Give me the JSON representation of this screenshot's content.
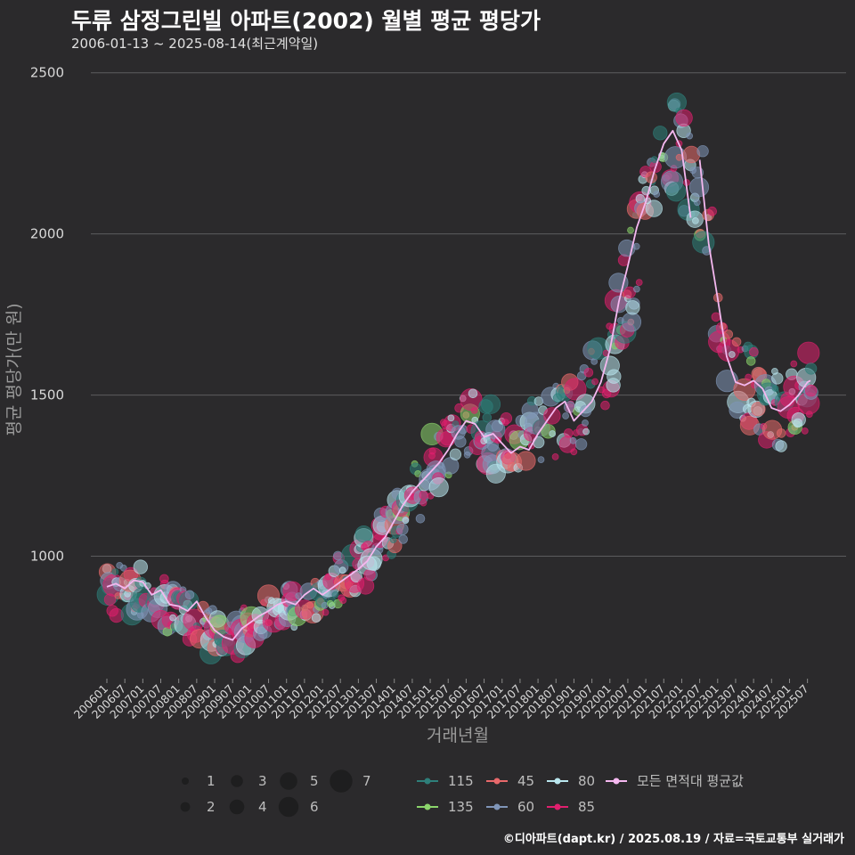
{
  "title": "두류 삼정그린빌 아파트(2002) 월별 평균 평당가",
  "subtitle": "2006-01-13 ~ 2025-08-14(최근계약일)",
  "credit": "©디아파트(dapt.kr) / 2025.08.19 / 자료=국토교통부 실거래가",
  "chart_data": {
    "type": "scatter",
    "xlabel": "거래년월",
    "ylabel": "평균 평당가(만 원)",
    "yticks": [
      1000,
      1500,
      2000,
      2500
    ],
    "ylim": [
      620,
      2560
    ],
    "x_range": [
      "2006-01",
      "2025-08"
    ],
    "grid": true,
    "xticks": [
      "200601",
      "200607",
      "200701",
      "200707",
      "200801",
      "200807",
      "200901",
      "200907",
      "201001",
      "201007",
      "201101",
      "201107",
      "201201",
      "201207",
      "201301",
      "201307",
      "201401",
      "201407",
      "201501",
      "201507",
      "201601",
      "201607",
      "201701",
      "201707",
      "201801",
      "201807",
      "201901",
      "201907",
      "202001",
      "202007",
      "202101",
      "202107",
      "202201",
      "202207",
      "202301",
      "202307",
      "202401",
      "202407",
      "202501",
      "202507"
    ],
    "size_legend": {
      "values": [
        "1",
        "2",
        "3",
        "4",
        "5",
        "6",
        "7"
      ]
    },
    "series": [
      {
        "name": "115",
        "color": "#2e7f7a"
      },
      {
        "name": "135",
        "color": "#8bd46b"
      },
      {
        "name": "45",
        "color": "#e8696b"
      },
      {
        "name": "60",
        "color": "#7f95b8"
      },
      {
        "name": "80",
        "color": "#b9e6ee"
      },
      {
        "name": "85",
        "color": "#e01f6e"
      },
      {
        "name": "모든 면적대 평균값",
        "color": "#f5b8f0"
      }
    ],
    "average_line": {
      "name": "모든 면적대 평균값",
      "segments": [
        [
          [
            "2006-01",
            905
          ],
          [
            "2006-04",
            915
          ],
          [
            "2006-07",
            900
          ],
          [
            "2006-10",
            925
          ],
          [
            "2007-01",
            920
          ],
          [
            "2007-04",
            880
          ],
          [
            "2007-07",
            895
          ],
          [
            "2007-10",
            850
          ],
          [
            "2008-01",
            845
          ],
          [
            "2008-04",
            830
          ],
          [
            "2008-07",
            860
          ],
          [
            "2008-10",
            810
          ],
          [
            "2009-01",
            770
          ],
          [
            "2009-04",
            750
          ],
          [
            "2009-07",
            740
          ],
          [
            "2009-10",
            775
          ],
          [
            "2010-01",
            795
          ],
          [
            "2010-04",
            815
          ],
          [
            "2010-07",
            830
          ],
          [
            "2010-10",
            850
          ],
          [
            "2011-01",
            860
          ],
          [
            "2011-04",
            850
          ],
          [
            "2011-07",
            880
          ],
          [
            "2011-10",
            900
          ],
          [
            "2012-01",
            880
          ],
          [
            "2012-04",
            900
          ],
          [
            "2012-07",
            920
          ],
          [
            "2012-10",
            940
          ],
          [
            "2013-01",
            960
          ],
          [
            "2013-04",
            985
          ],
          [
            "2013-07",
            1030
          ],
          [
            "2013-10",
            1060
          ],
          [
            "2014-01",
            1110
          ],
          [
            "2014-04",
            1160
          ],
          [
            "2014-07",
            1200
          ],
          [
            "2014-10",
            1230
          ],
          [
            "2015-01",
            1260
          ],
          [
            "2015-04",
            1290
          ],
          [
            "2015-07",
            1330
          ],
          [
            "2015-10",
            1380
          ],
          [
            "2016-01",
            1420
          ],
          [
            "2016-04",
            1410
          ],
          [
            "2016-07",
            1370
          ],
          [
            "2016-10",
            1380
          ],
          [
            "2017-01",
            1350
          ],
          [
            "2017-04",
            1320
          ],
          [
            "2017-07",
            1340
          ],
          [
            "2017-10",
            1330
          ],
          [
            "2018-01",
            1380
          ],
          [
            "2018-04",
            1420
          ],
          [
            "2018-07",
            1460
          ],
          [
            "2018-10",
            1480
          ],
          [
            "2019-01",
            1420
          ],
          [
            "2019-04",
            1450
          ],
          [
            "2019-07",
            1480
          ],
          [
            "2019-10",
            1540
          ],
          [
            "2020-01",
            1640
          ],
          [
            "2020-04",
            1790
          ],
          [
            "2020-07",
            1900
          ],
          [
            "2020-10",
            2020
          ],
          [
            "2021-01",
            2100
          ],
          [
            "2021-04",
            2200
          ],
          [
            "2021-07",
            2280
          ],
          [
            "2021-10",
            2320
          ],
          [
            "2022-01",
            2260
          ],
          [
            "2022-04",
            2050
          ]
        ],
        [
          [
            "2022-07",
            2230
          ],
          [
            "2022-10",
            1970
          ],
          [
            "2023-01",
            1800
          ],
          [
            "2023-04",
            1620
          ],
          [
            "2023-07",
            1540
          ],
          [
            "2023-10",
            1530
          ],
          [
            "2024-01",
            1545
          ],
          [
            "2024-04",
            1520
          ],
          [
            "2024-07",
            1460
          ],
          [
            "2024-10",
            1450
          ],
          [
            "2025-01",
            1470
          ],
          [
            "2025-04",
            1500
          ],
          [
            "2025-07",
            1540
          ],
          [
            "2025-08",
            1545
          ]
        ]
      ]
    },
    "trend_points": [
      [
        "2006-01",
        900
      ],
      [
        "2007-01",
        880
      ],
      [
        "2008-01",
        830
      ],
      [
        "2009-01",
        760
      ],
      [
        "2009-07",
        745
      ],
      [
        "2010-01",
        790
      ],
      [
        "2011-01",
        850
      ],
      [
        "2012-01",
        890
      ],
      [
        "2013-01",
        960
      ],
      [
        "2014-01",
        1100
      ],
      [
        "2015-01",
        1260
      ],
      [
        "2016-01",
        1410
      ],
      [
        "2017-01",
        1340
      ],
      [
        "2018-01",
        1390
      ],
      [
        "2019-01",
        1440
      ],
      [
        "2020-01",
        1620
      ],
      [
        "2021-01",
        2050
      ],
      [
        "2021-10",
        2250
      ],
      [
        "2022-07",
        2150
      ],
      [
        "2023-01",
        1800
      ],
      [
        "2023-07",
        1560
      ],
      [
        "2024-01",
        1520
      ],
      [
        "2024-07",
        1470
      ],
      [
        "2025-01",
        1470
      ],
      [
        "2025-08",
        1530
      ]
    ]
  }
}
